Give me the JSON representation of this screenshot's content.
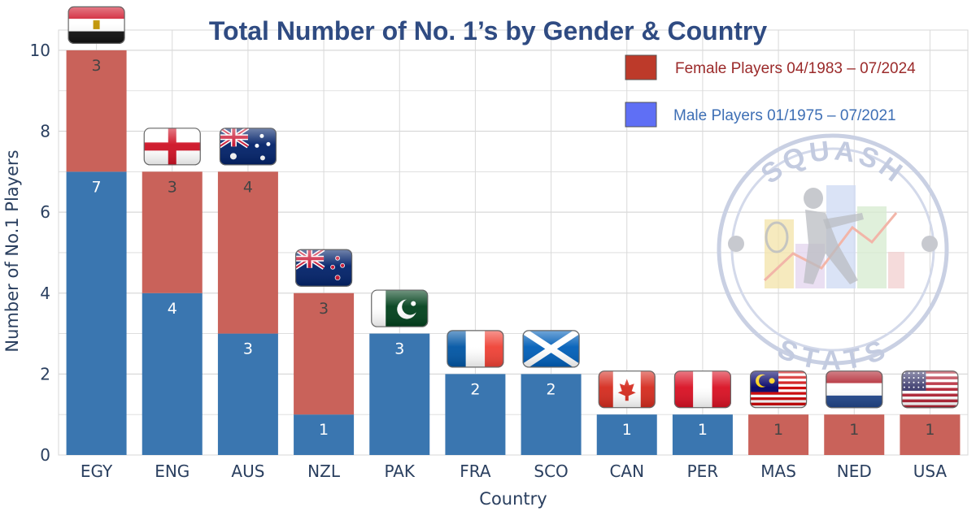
{
  "chart_data": {
    "type": "bar",
    "stacked": true,
    "title": "Total Number of No. 1’s by Gender & Country",
    "xlabel": "Country",
    "ylabel": "Number of No.1 Players",
    "categories": [
      "EGY",
      "ENG",
      "AUS",
      "NZL",
      "PAK",
      "FRA",
      "SCO",
      "CAN",
      "PER",
      "MAS",
      "NED",
      "USA"
    ],
    "series": [
      {
        "name": "Male Players 01/1975 – 07/2021",
        "color": "#3a76b0",
        "text_color": "#3e6fb5",
        "values": [
          7,
          4,
          3,
          1,
          3,
          2,
          2,
          1,
          1,
          0,
          0,
          0
        ]
      },
      {
        "name": "Female Players 04/1983 – 07/2024",
        "color": "#c9625a",
        "text_color": "#9b2a2a",
        "values": [
          3,
          3,
          4,
          3,
          0,
          0,
          0,
          0,
          0,
          1,
          1,
          1
        ]
      }
    ],
    "ylim": [
      0,
      10.5
    ],
    "yticks": [
      0,
      2,
      4,
      6,
      8,
      10
    ],
    "grid": true,
    "legend": "top-right",
    "flags": [
      "egypt-flag",
      "england-flag",
      "australia-flag",
      "new-zealand-flag",
      "pakistan-flag",
      "france-flag",
      "scotland-flag",
      "canada-flag",
      "peru-flag",
      "malaysia-flag",
      "netherlands-flag",
      "usa-flag"
    ]
  },
  "watermark": {
    "top": "SQUASH",
    "bottom": "STATS"
  }
}
